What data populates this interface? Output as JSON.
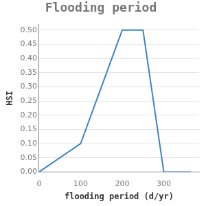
{
  "chart_data": {
    "type": "line",
    "title": "Flooding period",
    "x_label": "flooding period (d/yr)",
    "y_label": "HSI",
    "x": [
      0,
      100,
      200,
      250,
      300,
      365
    ],
    "values": [
      0,
      0.1,
      0.5,
      0.5,
      0,
      0
    ],
    "color": "#3d85c6",
    "xlim": [
      0,
      385
    ],
    "xticks": [
      0,
      100,
      200,
      300
    ],
    "ylim": [
      0,
      0.52
    ],
    "yticks": [
      {
        "value": 0,
        "label": "0.00"
      },
      0.05,
      {
        "value": 0.1,
        "label": "0.10"
      },
      0.15,
      {
        "value": 0.2,
        "label": "0.20"
      },
      0.25,
      {
        "value": 0.3,
        "label": "0.30"
      },
      0.35,
      {
        "value": 0.4,
        "label": "0.40"
      },
      0.45,
      {
        "value": 0.5,
        "label": "0.50"
      }
    ],
    "grid": true
  }
}
